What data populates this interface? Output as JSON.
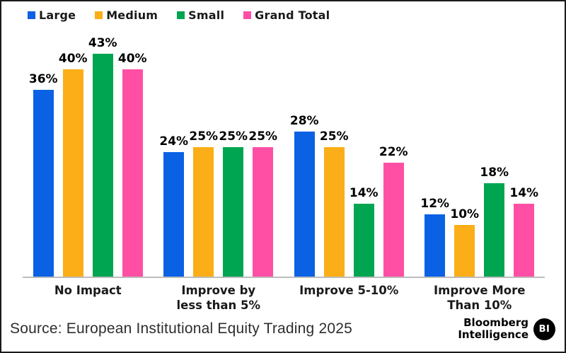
{
  "chart_data": {
    "type": "bar",
    "title": "",
    "xlabel": "",
    "ylabel": "",
    "categories": [
      "No Impact",
      "Improve by less than 5%",
      "Improve 5-10%",
      "Improve More Than 10%"
    ],
    "series": [
      {
        "name": "Large",
        "color": "#0A61E4",
        "values": [
          36,
          24,
          28,
          12
        ]
      },
      {
        "name": "Medium",
        "color": "#FBAE17",
        "values": [
          40,
          25,
          25,
          10
        ]
      },
      {
        "name": "Small",
        "color": "#00A551",
        "values": [
          43,
          25,
          14,
          18
        ]
      },
      {
        "name": "Grand Total",
        "color": "#FF4FA5",
        "values": [
          40,
          25,
          22,
          14
        ]
      }
    ],
    "value_suffix": "%",
    "ylim": [
      0,
      45
    ],
    "legend_position": "top-left",
    "grid": false,
    "axis_line_color": "#BDBDBD"
  },
  "footer": {
    "source": "Source: European Institutional Equity Trading 2025",
    "brand": {
      "line1": "Bloomberg",
      "line2": "Intelligence",
      "badge": "BI"
    }
  }
}
